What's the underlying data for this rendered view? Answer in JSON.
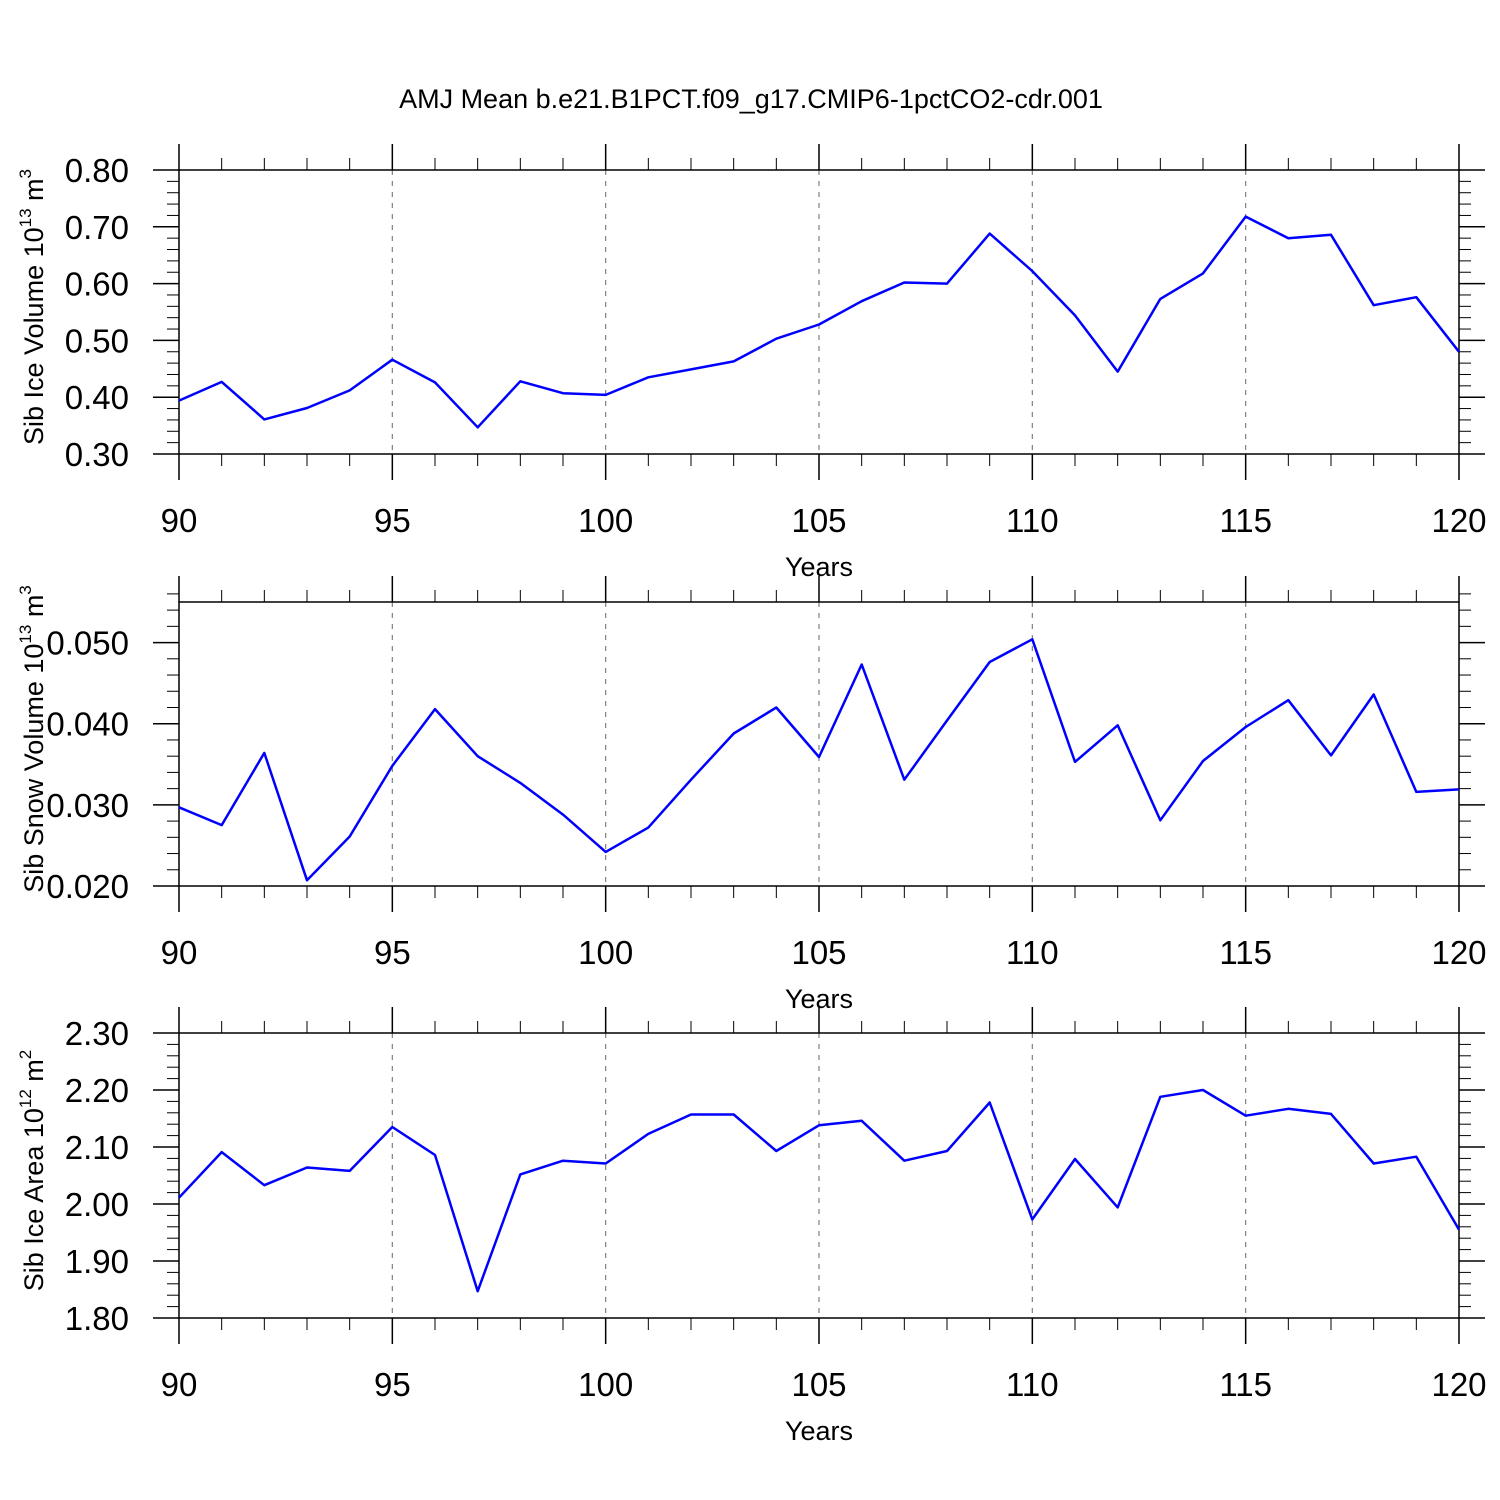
{
  "title": "AMJ Mean b.e21.B1PCT.f09_g17.CMIP6-1pctCO2-cdr.001",
  "colors": {
    "series": "#0000ff",
    "axis": "#000000",
    "grid": "#808080",
    "background": "#ffffff"
  },
  "chart_data": [
    {
      "type": "line",
      "xlabel": "Years",
      "ylabel": {
        "text": "Sib Ice Volume 10",
        "sup": "13",
        "unit": " m",
        "unit_sup": "3"
      },
      "xlim": [
        90,
        120
      ],
      "ylim": [
        0.3,
        0.8
      ],
      "xticks": [
        "90",
        "95",
        "100",
        "105",
        "110",
        "115",
        "120"
      ],
      "yticks": [
        "0.30",
        "0.40",
        "0.50",
        "0.60",
        "0.70",
        "0.80"
      ],
      "grid": "vertical dashed at major x ticks",
      "x": [
        90,
        91,
        92,
        93,
        94,
        95,
        96,
        97,
        98,
        99,
        100,
        101,
        102,
        103,
        104,
        105,
        106,
        107,
        108,
        109,
        110,
        111,
        112,
        113,
        114,
        115,
        116,
        117,
        118,
        119,
        120
      ],
      "series": [
        {
          "values": [
            0.394,
            0.427,
            0.361,
            0.381,
            0.412,
            0.466,
            0.426,
            0.347,
            0.428,
            0.407,
            0.404,
            0.435,
            0.449,
            0.463,
            0.503,
            0.528,
            0.569,
            0.602,
            0.6,
            0.688,
            0.622,
            0.544,
            0.445,
            0.573,
            0.618,
            0.718,
            0.68,
            0.686,
            0.562,
            0.576,
            0.48
          ]
        }
      ]
    },
    {
      "type": "line",
      "xlabel": "Years",
      "ylabel": {
        "text": "Sib Snow Volume 10",
        "sup": "13",
        "unit": " m",
        "unit_sup": "3"
      },
      "xlim": [
        90,
        120
      ],
      "ylim": [
        0.02,
        0.055
      ],
      "xticks": [
        "90",
        "95",
        "100",
        "105",
        "110",
        "115",
        "120"
      ],
      "yticks": [
        "0.020",
        "0.030",
        "0.040",
        "0.050"
      ],
      "ytick_values": [
        0.02,
        0.03,
        0.04,
        0.05
      ],
      "grid": "vertical dashed at major x ticks",
      "x": [
        90,
        91,
        92,
        93,
        94,
        95,
        96,
        97,
        98,
        99,
        100,
        101,
        102,
        103,
        104,
        105,
        106,
        107,
        108,
        109,
        110,
        111,
        112,
        113,
        114,
        115,
        116,
        117,
        118,
        119,
        120
      ],
      "series": [
        {
          "values": [
            0.0297,
            0.0275,
            0.0364,
            0.0207,
            0.0261,
            0.0348,
            0.0418,
            0.036,
            0.0327,
            0.0288,
            0.0242,
            0.0272,
            0.0331,
            0.0388,
            0.042,
            0.0359,
            0.0473,
            0.0331,
            0.0404,
            0.0476,
            0.0504,
            0.0353,
            0.0398,
            0.0281,
            0.0354,
            0.0396,
            0.0429,
            0.0361,
            0.0436,
            0.0316,
            0.0319
          ]
        }
      ]
    },
    {
      "type": "line",
      "xlabel": "Years",
      "ylabel": {
        "text": "Sib Ice Area 10",
        "sup": "12",
        "unit": " m",
        "unit_sup": "2"
      },
      "xlim": [
        90,
        120
      ],
      "ylim": [
        1.8,
        2.3
      ],
      "xticks": [
        "90",
        "95",
        "100",
        "105",
        "110",
        "115",
        "120"
      ],
      "yticks": [
        "1.80",
        "1.90",
        "2.00",
        "2.10",
        "2.20",
        "2.30"
      ],
      "grid": "vertical dashed at major x ticks",
      "x": [
        90,
        91,
        92,
        93,
        94,
        95,
        96,
        97,
        98,
        99,
        100,
        101,
        102,
        103,
        104,
        105,
        106,
        107,
        108,
        109,
        110,
        111,
        112,
        113,
        114,
        115,
        116,
        117,
        118,
        119,
        120
      ],
      "series": [
        {
          "values": [
            2.011,
            2.091,
            2.033,
            2.064,
            2.058,
            2.135,
            2.086,
            1.847,
            2.052,
            2.076,
            2.071,
            2.123,
            2.157,
            2.157,
            2.093,
            2.138,
            2.146,
            2.076,
            2.093,
            2.178,
            1.973,
            2.079,
            1.994,
            2.188,
            2.2,
            2.155,
            2.167,
            2.158,
            2.071,
            2.083,
            1.955
          ]
        }
      ]
    }
  ]
}
